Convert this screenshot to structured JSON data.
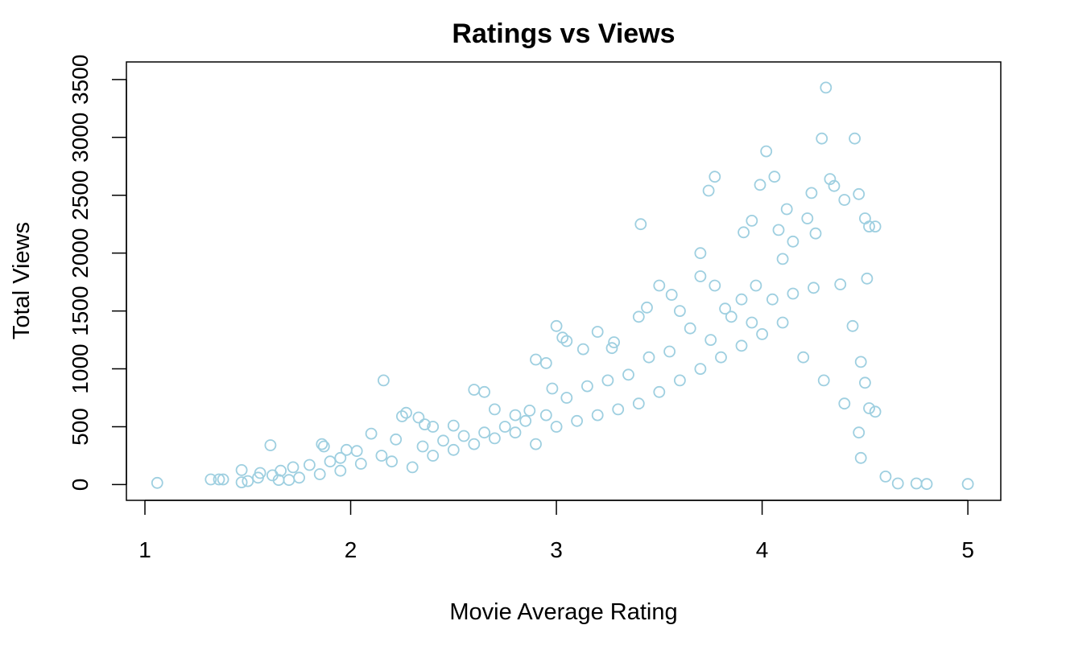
{
  "chart_data": {
    "type": "scatter",
    "title": "Ratings vs Views",
    "xlabel": "Movie Average Rating",
    "ylabel": "Total Views",
    "xlim": [
      0.91,
      5.16
    ],
    "ylim": [
      -136,
      3652
    ],
    "x_ticks": [
      1,
      2,
      3,
      4,
      5
    ],
    "y_ticks": [
      0,
      500,
      1000,
      1500,
      2000,
      2500,
      3000,
      3500
    ],
    "x_tick_labels": [
      "1",
      "2",
      "3",
      "4",
      "5"
    ],
    "y_tick_labels": [
      "0",
      "500",
      "1000",
      "1500",
      "2000",
      "2500",
      "3000",
      "3500"
    ],
    "grid": false,
    "legend": "none",
    "marker": "open-circle",
    "point_color": "#9ecfe0",
    "series": [
      {
        "points": [
          [
            1.06,
            15
          ],
          [
            1.32,
            45
          ],
          [
            1.36,
            45
          ],
          [
            1.38,
            45
          ],
          [
            1.47,
            125
          ],
          [
            1.47,
            20
          ],
          [
            1.5,
            30
          ],
          [
            1.55,
            60
          ],
          [
            1.56,
            100
          ],
          [
            1.61,
            340
          ],
          [
            1.62,
            80
          ],
          [
            1.66,
            120
          ],
          [
            1.7,
            40
          ],
          [
            1.72,
            150
          ],
          [
            1.8,
            170
          ],
          [
            1.86,
            350
          ],
          [
            1.87,
            330
          ],
          [
            1.9,
            200
          ],
          [
            1.95,
            230
          ],
          [
            1.98,
            300
          ],
          [
            2.03,
            290
          ],
          [
            2.1,
            440
          ],
          [
            2.16,
            900
          ],
          [
            2.22,
            390
          ],
          [
            2.25,
            590
          ],
          [
            2.27,
            620
          ],
          [
            2.33,
            580
          ],
          [
            2.36,
            520
          ],
          [
            2.4,
            500
          ],
          [
            2.5,
            510
          ],
          [
            2.6,
            820
          ],
          [
            2.65,
            800
          ],
          [
            2.7,
            650
          ],
          [
            2.8,
            600
          ],
          [
            2.87,
            640
          ],
          [
            2.9,
            1080
          ],
          [
            2.95,
            1050
          ],
          [
            2.98,
            830
          ],
          [
            3.0,
            1370
          ],
          [
            3.03,
            1270
          ],
          [
            3.05,
            1240
          ],
          [
            3.13,
            1170
          ],
          [
            3.2,
            1320
          ],
          [
            3.27,
            1180
          ],
          [
            3.28,
            1230
          ],
          [
            3.4,
            1450
          ],
          [
            3.41,
            2250
          ],
          [
            3.44,
            1530
          ],
          [
            3.5,
            1720
          ],
          [
            3.56,
            1640
          ],
          [
            3.6,
            1500
          ],
          [
            3.7,
            2000
          ],
          [
            3.7,
            1800
          ],
          [
            3.74,
            2540
          ],
          [
            3.77,
            2660
          ],
          [
            3.77,
            1720
          ],
          [
            3.82,
            1520
          ],
          [
            3.9,
            1600
          ],
          [
            3.91,
            2180
          ],
          [
            3.95,
            2280
          ],
          [
            3.97,
            1720
          ],
          [
            3.99,
            2590
          ],
          [
            4.02,
            2880
          ],
          [
            4.06,
            2660
          ],
          [
            4.08,
            2200
          ],
          [
            4.1,
            1950
          ],
          [
            4.12,
            2380
          ],
          [
            4.15,
            2100
          ],
          [
            4.22,
            2300
          ],
          [
            4.24,
            2520
          ],
          [
            4.26,
            2170
          ],
          [
            4.29,
            2990
          ],
          [
            4.31,
            3430
          ],
          [
            4.33,
            2640
          ],
          [
            4.35,
            2580
          ],
          [
            4.38,
            1730
          ],
          [
            4.4,
            2460
          ],
          [
            4.45,
            2990
          ],
          [
            4.47,
            2510
          ],
          [
            4.5,
            2300
          ],
          [
            4.52,
            2230
          ],
          [
            4.55,
            2230
          ],
          [
            4.51,
            1780
          ],
          [
            4.44,
            1370
          ],
          [
            4.48,
            1060
          ],
          [
            4.5,
            880
          ],
          [
            4.52,
            660
          ],
          [
            4.55,
            630
          ],
          [
            4.47,
            450
          ],
          [
            4.48,
            230
          ],
          [
            4.6,
            70
          ],
          [
            4.66,
            10
          ],
          [
            4.75,
            10
          ],
          [
            4.8,
            5
          ],
          [
            5.0,
            5
          ],
          [
            2.2,
            200
          ],
          [
            2.3,
            150
          ],
          [
            2.4,
            250
          ],
          [
            2.5,
            300
          ],
          [
            2.6,
            350
          ],
          [
            2.7,
            400
          ],
          [
            2.8,
            450
          ],
          [
            2.9,
            350
          ],
          [
            3.0,
            500
          ],
          [
            3.1,
            550
          ],
          [
            3.2,
            600
          ],
          [
            3.3,
            650
          ],
          [
            3.4,
            700
          ],
          [
            3.5,
            800
          ],
          [
            3.6,
            900
          ],
          [
            3.7,
            1000
          ],
          [
            3.8,
            1100
          ],
          [
            3.9,
            1200
          ],
          [
            4.0,
            1300
          ],
          [
            4.1,
            1400
          ],
          [
            4.2,
            1100
          ],
          [
            4.3,
            900
          ],
          [
            4.4,
            700
          ],
          [
            3.45,
            1100
          ],
          [
            3.55,
            1150
          ],
          [
            3.65,
            1350
          ],
          [
            3.75,
            1250
          ],
          [
            3.85,
            1450
          ],
          [
            3.95,
            1400
          ],
          [
            4.05,
            1600
          ],
          [
            4.15,
            1650
          ],
          [
            4.25,
            1700
          ],
          [
            3.35,
            950
          ],
          [
            3.25,
            900
          ],
          [
            3.15,
            850
          ],
          [
            3.05,
            750
          ],
          [
            2.95,
            600
          ],
          [
            2.85,
            550
          ],
          [
            2.75,
            500
          ],
          [
            2.65,
            450
          ],
          [
            2.55,
            420
          ],
          [
            2.45,
            380
          ],
          [
            2.35,
            330
          ],
          [
            2.15,
            250
          ],
          [
            2.05,
            180
          ],
          [
            1.95,
            120
          ],
          [
            1.85,
            90
          ],
          [
            1.75,
            60
          ],
          [
            1.65,
            40
          ]
        ]
      }
    ]
  }
}
